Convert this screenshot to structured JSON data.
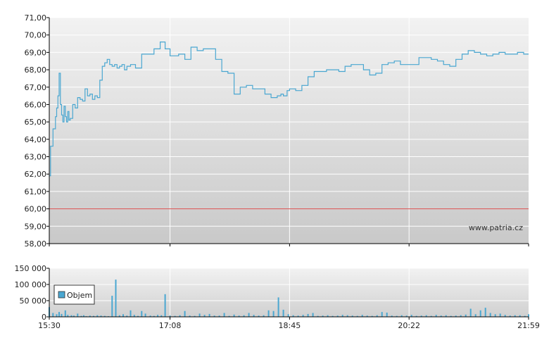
{
  "watermark": "www.patria.cz",
  "colors": {
    "line": "#4aa7d1",
    "volume": "#4aa7d1",
    "reference": "#d94a4a",
    "grid": "#ffffff",
    "axis": "#000000"
  },
  "chart_data": [
    {
      "type": "line",
      "ylim": [
        58,
        71
      ],
      "y_ticks": [
        "71,00",
        "70,00",
        "69,00",
        "68,00",
        "67,00",
        "66,00",
        "65,00",
        "64,00",
        "63,00",
        "62,00",
        "61,00",
        "60,00",
        "59,00",
        "58,00"
      ],
      "y_tick_values": [
        71,
        70,
        69,
        68,
        67,
        66,
        65,
        64,
        63,
        62,
        61,
        60,
        59,
        58
      ],
      "x_ticks": [
        "15:30",
        "17:08",
        "18:45",
        "20:22",
        "21:59"
      ],
      "reference_line": 60,
      "grid": true,
      "series": [
        {
          "x": [
            "15:30",
            "15:31",
            "15:33",
            "15:35",
            "15:36",
            "15:37",
            "15:38",
            "15:39",
            "15:40",
            "15:41",
            "15:42",
            "15:43",
            "15:44",
            "15:45",
            "15:46",
            "15:47",
            "15:49",
            "15:51",
            "15:53",
            "15:55",
            "15:57",
            "15:59",
            "16:01",
            "16:03",
            "16:05",
            "16:07",
            "16:09",
            "16:11",
            "16:13",
            "16:15",
            "16:17",
            "16:19",
            "16:21",
            "16:23",
            "16:25",
            "16:27",
            "16:29",
            "16:31",
            "16:33",
            "16:36",
            "16:40",
            "16:45",
            "16:50",
            "16:55",
            "17:00",
            "17:04",
            "17:08",
            "17:15",
            "17:20",
            "17:25",
            "17:30",
            "17:35",
            "17:40",
            "17:45",
            "17:50",
            "17:55",
            "18:00",
            "18:05",
            "18:10",
            "18:15",
            "18:20",
            "18:25",
            "18:30",
            "18:35",
            "18:38",
            "18:40",
            "18:43",
            "18:45",
            "18:50",
            "18:55",
            "19:00",
            "19:05",
            "19:10",
            "19:15",
            "19:20",
            "19:25",
            "19:30",
            "19:35",
            "19:40",
            "19:45",
            "19:50",
            "19:55",
            "20:00",
            "20:05",
            "20:10",
            "20:15",
            "20:22",
            "20:30",
            "20:35",
            "20:40",
            "20:45",
            "20:50",
            "20:55",
            "21:00",
            "21:05",
            "21:10",
            "21:15",
            "21:20",
            "21:25",
            "21:30",
            "21:35",
            "21:40",
            "21:45",
            "21:50",
            "21:55",
            "21:59"
          ],
          "values": [
            61.9,
            63.6,
            64.6,
            65.3,
            65.8,
            66.5,
            67.8,
            66.0,
            65.4,
            65.0,
            65.9,
            65.3,
            65.0,
            65.6,
            65.1,
            65.2,
            66.0,
            65.8,
            66.4,
            66.3,
            66.2,
            66.9,
            66.5,
            66.6,
            66.3,
            66.5,
            66.4,
            67.4,
            68.2,
            68.4,
            68.6,
            68.3,
            68.2,
            68.3,
            68.1,
            68.2,
            68.3,
            68.0,
            68.2,
            68.3,
            68.1,
            68.9,
            68.9,
            69.2,
            69.6,
            69.2,
            68.8,
            68.9,
            68.6,
            69.3,
            69.1,
            69.2,
            69.2,
            68.6,
            67.9,
            67.8,
            66.6,
            67.0,
            67.1,
            66.9,
            66.9,
            66.6,
            66.4,
            66.5,
            66.6,
            66.5,
            66.8,
            66.9,
            66.8,
            67.1,
            67.6,
            67.9,
            67.9,
            68.0,
            68.0,
            67.9,
            68.2,
            68.3,
            68.3,
            68.0,
            67.7,
            67.8,
            68.3,
            68.4,
            68.5,
            68.3,
            68.3,
            68.7,
            68.7,
            68.6,
            68.5,
            68.3,
            68.2,
            68.6,
            68.9,
            69.1,
            69.0,
            68.9,
            68.8,
            68.9,
            69.0,
            68.9,
            68.9,
            69.0,
            68.9,
            68.9
          ]
        }
      ]
    },
    {
      "type": "bar",
      "ylim": [
        0,
        150000
      ],
      "y_ticks": [
        "150 000",
        "100 000",
        "50 000",
        "0"
      ],
      "y_tick_values": [
        150000,
        100000,
        50000,
        0
      ],
      "x_ticks": [
        "15:30",
        "17:08",
        "18:45",
        "20:22",
        "21:59"
      ],
      "legend": "Objem",
      "legend_position": "left",
      "grid": true,
      "series": [
        {
          "name": "Objem",
          "x": [
            "15:30",
            "15:33",
            "15:36",
            "15:38",
            "15:40",
            "15:43",
            "15:45",
            "15:48",
            "15:50",
            "15:53",
            "15:56",
            "15:58",
            "16:00",
            "16:03",
            "16:06",
            "16:09",
            "16:12",
            "16:15",
            "16:18",
            "16:21",
            "16:24",
            "16:27",
            "16:30",
            "16:33",
            "16:36",
            "16:39",
            "16:42",
            "16:45",
            "16:48",
            "16:52",
            "16:55",
            "16:58",
            "17:01",
            "17:04",
            "17:08",
            "17:12",
            "17:16",
            "17:20",
            "17:24",
            "17:28",
            "17:32",
            "17:36",
            "17:40",
            "17:44",
            "17:48",
            "17:52",
            "17:56",
            "18:00",
            "18:04",
            "18:08",
            "18:12",
            "18:16",
            "18:20",
            "18:24",
            "18:28",
            "18:32",
            "18:36",
            "18:40",
            "18:44",
            "18:48",
            "18:52",
            "18:56",
            "19:00",
            "19:04",
            "19:08",
            "19:12",
            "19:16",
            "19:20",
            "19:24",
            "19:28",
            "19:32",
            "19:36",
            "19:40",
            "19:44",
            "19:48",
            "19:52",
            "19:56",
            "20:00",
            "20:04",
            "20:08",
            "20:12",
            "20:16",
            "20:20",
            "20:24",
            "20:28",
            "20:32",
            "20:36",
            "20:40",
            "20:44",
            "20:48",
            "20:52",
            "20:56",
            "21:00",
            "21:04",
            "21:08",
            "21:12",
            "21:16",
            "21:20",
            "21:24",
            "21:28",
            "21:32",
            "21:36",
            "21:40",
            "21:44",
            "21:48",
            "21:52",
            "21:56",
            "21:59"
          ],
          "values": [
            30000,
            12000,
            8000,
            15000,
            9000,
            20000,
            6000,
            5000,
            4000,
            10000,
            3000,
            5000,
            2000,
            4000,
            3000,
            5000,
            4000,
            3000,
            2000,
            65000,
            115000,
            5000,
            8000,
            4000,
            20000,
            6000,
            3000,
            18000,
            10000,
            4000,
            3000,
            6000,
            5000,
            70000,
            4000,
            3000,
            5000,
            18000,
            4000,
            3000,
            10000,
            6000,
            9000,
            4000,
            4000,
            12000,
            3000,
            7000,
            4000,
            5000,
            12000,
            6000,
            4000,
            5000,
            20000,
            18000,
            60000,
            22000,
            8000,
            5000,
            4000,
            6000,
            9000,
            12000,
            3000,
            4000,
            5000,
            3000,
            4000,
            6000,
            5000,
            4000,
            3000,
            6000,
            4000,
            3000,
            5000,
            15000,
            13000,
            4000,
            3000,
            5000,
            4000,
            6000,
            3000,
            4000,
            5000,
            3000,
            6000,
            4000,
            5000,
            3000,
            4000,
            5000,
            7000,
            25000,
            8000,
            20000,
            28000,
            12000,
            8000,
            10000,
            6000,
            4000,
            5000,
            5000,
            3000,
            8000
          ]
        }
      ]
    }
  ]
}
